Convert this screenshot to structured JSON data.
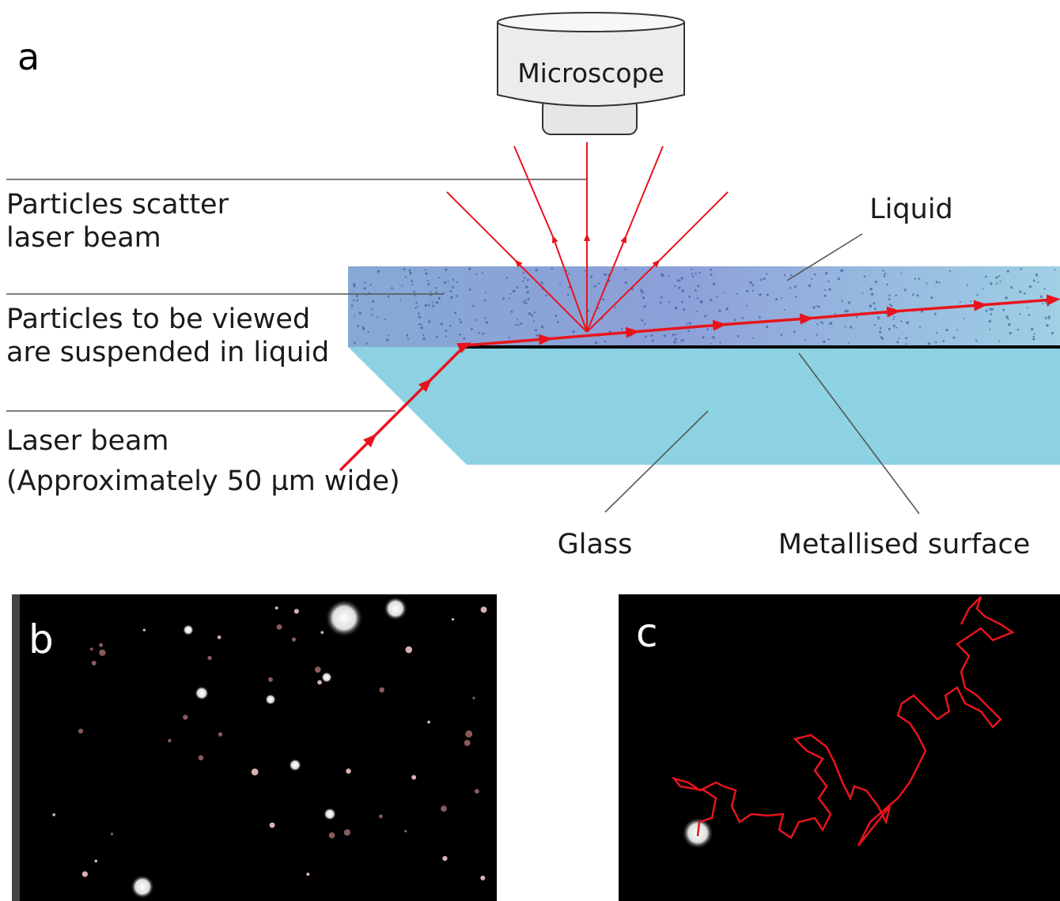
{
  "panel_a": {
    "label": "a",
    "microscope": "Microscope",
    "scatter_label": [
      "Particles scatter",
      "laser beam"
    ],
    "suspended_label": [
      "Particles to be viewed",
      "are suspended in liquid"
    ],
    "laser_label": [
      "Laser beam",
      "(Approximately 50 µm wide)"
    ],
    "liquid_label": "Liquid",
    "glass_label": "Glass",
    "metal_label": "Metallised surface"
  },
  "panel_b": {
    "label": "b"
  },
  "panel_c": {
    "label": "c"
  }
}
